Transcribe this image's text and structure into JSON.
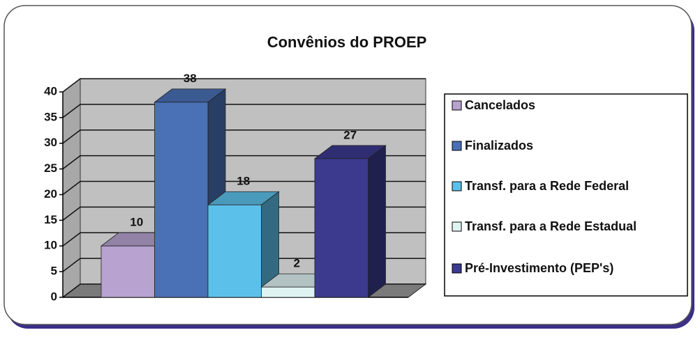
{
  "chart_data": {
    "type": "bar3d",
    "title": "Convênios do PROEP",
    "categories": [
      "Cancelados",
      "Finalizados",
      "Transf. para a Rede Federal",
      "Transf. para a Rede Estadual",
      "Pré-Investimento (PEP's)"
    ],
    "values": [
      10,
      38,
      18,
      2,
      27
    ],
    "colors": [
      "#b7a2d0",
      "#4a70b6",
      "#5cc1ea",
      "#dff3f2",
      "#3b3a8e"
    ],
    "ylim": [
      0,
      40
    ],
    "yticks": [
      0,
      5,
      10,
      15,
      20,
      25,
      30,
      35,
      40
    ],
    "grid": true,
    "legend": "right"
  }
}
